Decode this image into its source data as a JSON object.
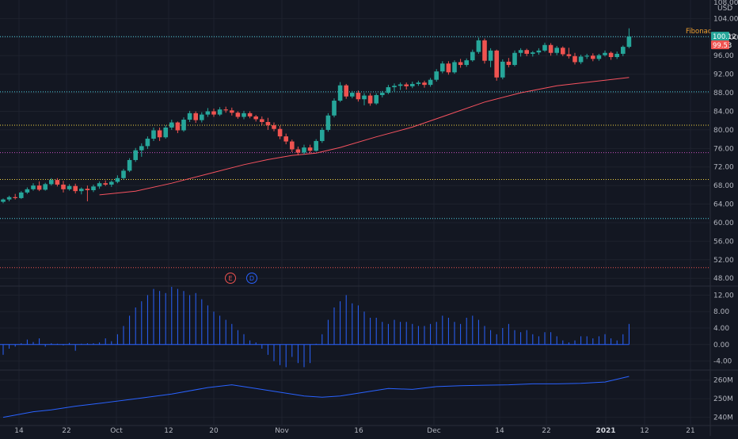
{
  "colors": {
    "background": "#131722",
    "grid": "#1e222d",
    "up": "#26a69a",
    "down": "#ef5350",
    "ma_line": "#f7525f",
    "hist": "#2962ff",
    "indicator_line": "#2962ff",
    "text": "#b2b5be",
    "fib_cyan": "#4dd0e1",
    "fib_yellow": "#f6d743",
    "fib_magenta": "#c850c0",
    "fib_red": "#ef5350",
    "fib_label": "#f0a030",
    "last_price_bg": "#26a69a",
    "prev_close_bg": "#ef5350"
  },
  "price_axis": {
    "currency": "USD",
    "ticks": [
      "108.00",
      "104.00",
      "100.00",
      "96.00",
      "92.00",
      "88.00",
      "84.00",
      "80.00",
      "76.00",
      "72.00",
      "68.00",
      "64.00",
      "60.00",
      "56.00",
      "52.00",
      "48.00"
    ]
  },
  "price_badges": {
    "last": "100.12",
    "previous": "99.53"
  },
  "fib_label": "Fibonac",
  "event_markers": [
    {
      "letter": "E",
      "color": "#ef5350"
    },
    {
      "letter": "D",
      "color": "#2962ff"
    }
  ],
  "osc_axis": {
    "ticks": [
      "12.00",
      "8.00",
      "4.00",
      "0.00",
      "-4.00"
    ]
  },
  "vol_axis": {
    "ticks": [
      "260M",
      "250M",
      "240M"
    ]
  },
  "time_axis": [
    {
      "label": "14",
      "bold": false
    },
    {
      "label": "22",
      "bold": false
    },
    {
      "label": "Oct",
      "bold": false
    },
    {
      "label": "12",
      "bold": false
    },
    {
      "label": "20",
      "bold": false
    },
    {
      "label": "Nov",
      "bold": false
    },
    {
      "label": "16",
      "bold": false
    },
    {
      "label": "Dec",
      "bold": false
    },
    {
      "label": "14",
      "bold": false
    },
    {
      "label": "22",
      "bold": false
    },
    {
      "label": "2021",
      "bold": true
    },
    {
      "label": "12",
      "bold": false
    },
    {
      "label": "21",
      "bold": false
    }
  ],
  "chart_data": [
    {
      "type": "candlestick",
      "title": "",
      "y_unit": "USD",
      "ylim": [
        46.5,
        108
      ],
      "y_ticks": [
        104,
        100,
        96,
        92,
        88,
        84,
        80,
        76,
        72,
        68,
        64,
        60,
        56,
        52,
        48
      ],
      "fibonacci_levels": [
        {
          "value": 100.1,
          "color": "cyan"
        },
        {
          "value": 88.2,
          "color": "cyan"
        },
        {
          "value": 81.0,
          "color": "yellow"
        },
        {
          "value": 75.1,
          "color": "magenta"
        },
        {
          "value": 69.3,
          "color": "yellow"
        },
        {
          "value": 60.9,
          "color": "cyan"
        },
        {
          "value": 50.3,
          "color": "red"
        }
      ],
      "candles": [
        [
          64.5,
          65.2,
          64.2,
          65.0
        ],
        [
          65.0,
          65.8,
          64.6,
          65.5
        ],
        [
          65.5,
          66.2,
          65.0,
          65.3
        ],
        [
          65.3,
          66.8,
          65.1,
          66.5
        ],
        [
          66.5,
          67.6,
          66.2,
          67.2
        ],
        [
          67.2,
          68.5,
          66.9,
          68.0
        ],
        [
          68.0,
          68.9,
          66.8,
          67.1
        ],
        [
          67.1,
          68.6,
          66.9,
          68.3
        ],
        [
          68.3,
          69.6,
          68.0,
          69.2
        ],
        [
          69.2,
          69.6,
          67.8,
          68.2
        ],
        [
          68.2,
          69.0,
          66.5,
          67.2
        ],
        [
          67.2,
          68.3,
          66.9,
          67.9
        ],
        [
          67.9,
          68.4,
          66.3,
          66.8
        ],
        [
          66.8,
          67.6,
          66.1,
          67.3
        ],
        [
          67.3,
          68.0,
          64.6,
          67.0
        ],
        [
          67.0,
          68.2,
          66.6,
          67.8
        ],
        [
          67.8,
          68.9,
          67.3,
          68.5
        ],
        [
          68.5,
          69.1,
          67.9,
          68.2
        ],
        [
          68.2,
          69.1,
          67.7,
          68.8
        ],
        [
          68.8,
          70.2,
          68.5,
          69.6
        ],
        [
          69.6,
          71.6,
          69.3,
          71.2
        ],
        [
          71.2,
          73.9,
          70.9,
          73.5
        ],
        [
          73.5,
          76.1,
          73.1,
          75.6
        ],
        [
          75.6,
          77.1,
          74.2,
          76.5
        ],
        [
          76.5,
          78.6,
          75.9,
          78.1
        ],
        [
          78.1,
          80.5,
          77.6,
          79.9
        ],
        [
          79.9,
          80.5,
          77.6,
          78.4
        ],
        [
          78.4,
          81.0,
          78.1,
          80.5
        ],
        [
          80.5,
          82.2,
          80.0,
          81.6
        ],
        [
          81.6,
          81.8,
          79.3,
          79.9
        ],
        [
          79.9,
          82.7,
          79.6,
          82.2
        ],
        [
          82.2,
          84.1,
          81.7,
          83.6
        ],
        [
          83.6,
          84.0,
          81.5,
          82.1
        ],
        [
          82.1,
          83.8,
          81.6,
          83.3
        ],
        [
          83.3,
          84.7,
          82.8,
          84.0
        ],
        [
          84.0,
          84.6,
          82.8,
          83.3
        ],
        [
          83.3,
          84.9,
          83.0,
          84.4
        ],
        [
          84.4,
          85.0,
          83.7,
          84.2
        ],
        [
          84.2,
          84.8,
          83.1,
          83.7
        ],
        [
          83.7,
          84.0,
          82.4,
          82.8
        ],
        [
          82.8,
          84.1,
          82.3,
          83.6
        ],
        [
          83.6,
          84.0,
          82.5,
          82.9
        ],
        [
          82.9,
          83.2,
          81.8,
          82.3
        ],
        [
          82.3,
          82.9,
          81.1,
          81.7
        ],
        [
          81.7,
          82.6,
          80.0,
          81.0
        ],
        [
          81.0,
          81.6,
          79.7,
          80.2
        ],
        [
          80.2,
          80.9,
          78.0,
          78.6
        ],
        [
          78.6,
          79.2,
          76.9,
          77.5
        ],
        [
          77.5,
          77.9,
          75.2,
          75.8
        ],
        [
          75.8,
          76.4,
          74.5,
          75.1
        ],
        [
          75.1,
          76.8,
          74.7,
          76.2
        ],
        [
          76.2,
          76.8,
          75.0,
          75.5
        ],
        [
          75.5,
          78.0,
          75.3,
          77.6
        ],
        [
          77.6,
          80.5,
          77.2,
          80.0
        ],
        [
          80.0,
          83.6,
          79.6,
          83.1
        ],
        [
          83.1,
          86.8,
          82.7,
          86.3
        ],
        [
          86.3,
          90.3,
          86.0,
          89.6
        ],
        [
          89.6,
          89.9,
          86.7,
          87.2
        ],
        [
          87.2,
          88.4,
          86.8,
          88.0
        ],
        [
          88.0,
          88.5,
          86.1,
          86.6
        ],
        [
          86.6,
          87.9,
          85.3,
          87.4
        ],
        [
          87.4,
          87.9,
          85.2,
          85.7
        ],
        [
          85.7,
          87.9,
          85.4,
          87.5
        ],
        [
          87.5,
          88.4,
          87.0,
          88.0
        ],
        [
          88.0,
          89.7,
          87.7,
          89.2
        ],
        [
          89.2,
          90.0,
          88.3,
          89.5
        ],
        [
          89.5,
          90.2,
          88.6,
          89.8
        ],
        [
          89.8,
          90.2,
          88.7,
          89.4
        ],
        [
          89.4,
          90.4,
          89.0,
          89.9
        ],
        [
          89.9,
          90.6,
          89.5,
          90.2
        ],
        [
          90.2,
          90.6,
          89.1,
          89.7
        ],
        [
          89.7,
          91.2,
          89.3,
          90.8
        ],
        [
          90.8,
          93.1,
          90.4,
          92.6
        ],
        [
          92.6,
          94.8,
          92.2,
          94.3
        ],
        [
          94.3,
          94.8,
          91.9,
          92.4
        ],
        [
          92.4,
          95.0,
          92.1,
          94.6
        ],
        [
          94.6,
          95.3,
          93.4,
          94.0
        ],
        [
          94.0,
          95.4,
          93.6,
          95.0
        ],
        [
          95.0,
          97.3,
          94.7,
          96.8
        ],
        [
          96.8,
          99.9,
          96.4,
          99.3
        ],
        [
          99.3,
          99.7,
          94.3,
          94.9
        ],
        [
          94.9,
          97.6,
          93.5,
          97.1
        ],
        [
          97.1,
          97.3,
          90.6,
          91.3
        ],
        [
          91.3,
          95.2,
          90.9,
          94.7
        ],
        [
          94.7,
          95.5,
          93.5,
          94.0
        ],
        [
          94.0,
          97.1,
          93.7,
          96.6
        ],
        [
          96.6,
          97.6,
          95.8,
          97.2
        ],
        [
          97.2,
          97.5,
          95.9,
          96.4
        ],
        [
          96.4,
          97.0,
          95.8,
          96.7
        ],
        [
          96.7,
          97.6,
          96.2,
          97.1
        ],
        [
          97.1,
          98.8,
          96.8,
          98.3
        ],
        [
          98.3,
          98.7,
          96.0,
          96.6
        ],
        [
          96.6,
          98.1,
          96.1,
          97.7
        ],
        [
          97.7,
          98.0,
          95.9,
          96.3
        ],
        [
          96.3,
          97.7,
          95.4,
          95.9
        ],
        [
          95.9,
          96.6,
          94.1,
          94.6
        ],
        [
          94.6,
          96.2,
          94.2,
          95.8
        ],
        [
          95.8,
          96.4,
          95.3,
          96.0
        ],
        [
          96.0,
          96.5,
          94.8,
          95.3
        ],
        [
          95.3,
          96.4,
          94.9,
          96.1
        ],
        [
          96.1,
          97.1,
          95.8,
          96.6
        ],
        [
          96.6,
          96.9,
          95.1,
          95.7
        ],
        [
          95.7,
          96.9,
          95.3,
          96.4
        ],
        [
          96.4,
          98.2,
          95.9,
          97.9
        ],
        [
          97.9,
          101.9,
          97.6,
          100.12
        ]
      ],
      "moving_average": [
        [
          16,
          66.0
        ],
        [
          22,
          66.8
        ],
        [
          28,
          68.5
        ],
        [
          34,
          70.5
        ],
        [
          40,
          72.5
        ],
        [
          44,
          73.6
        ],
        [
          48,
          74.5
        ],
        [
          52,
          75.0
        ],
        [
          56,
          76.2
        ],
        [
          62,
          78.5
        ],
        [
          68,
          80.6
        ],
        [
          74,
          83.3
        ],
        [
          80,
          86.0
        ],
        [
          86,
          88.0
        ],
        [
          92,
          89.5
        ],
        [
          98,
          90.4
        ],
        [
          104,
          91.3
        ]
      ]
    },
    {
      "type": "bar",
      "title": "",
      "ylim": [
        -6,
        14
      ],
      "y_ticks": [
        12,
        8,
        4,
        0,
        -4
      ],
      "values": [
        -2.5,
        -1.0,
        -0.5,
        0.3,
        1.2,
        0.6,
        1.5,
        -0.5,
        0.3,
        0.2,
        -0.2,
        0.4,
        -1.5,
        0.2,
        0.3,
        0.3,
        0.5,
        1.5,
        0.8,
        2.5,
        4.5,
        7.0,
        9.0,
        10.5,
        12.0,
        13.5,
        13.0,
        12.5,
        14.0,
        13.5,
        13.0,
        12.0,
        12.5,
        11.0,
        9.5,
        8.0,
        7.0,
        6.0,
        5.0,
        3.5,
        2.5,
        1.0,
        0.5,
        -1.0,
        -2.5,
        -4.0,
        -5.0,
        -5.5,
        -3.0,
        -4.5,
        -5.5,
        -4.5,
        0.2,
        2.5,
        6.0,
        9.0,
        10.5,
        12.0,
        10.0,
        9.5,
        8.0,
        6.5,
        6.5,
        5.5,
        5.0,
        6.0,
        5.5,
        5.5,
        5.0,
        4.5,
        4.5,
        5.0,
        5.5,
        7.0,
        6.5,
        5.5,
        5.0,
        6.5,
        7.0,
        6.0,
        4.5,
        3.5,
        2.5,
        4.0,
        5.0,
        3.5,
        3.0,
        3.5,
        2.5,
        2.0,
        3.0,
        3.0,
        2.0,
        1.0,
        0.5,
        1.0,
        2.0,
        2.0,
        1.5,
        2.0,
        2.5,
        1.5,
        1.0,
        2.5,
        5.0
      ]
    },
    {
      "type": "line",
      "title": "",
      "ylim": [
        236,
        265
      ],
      "y_ticks": [
        260,
        250,
        240
      ],
      "y_unit": "M",
      "points": [
        [
          0,
          240.0
        ],
        [
          5,
          243.0
        ],
        [
          8,
          244.0
        ],
        [
          12,
          246.0
        ],
        [
          16,
          247.5
        ],
        [
          22,
          250.0
        ],
        [
          28,
          252.5
        ],
        [
          34,
          256.0
        ],
        [
          38,
          257.5
        ],
        [
          42,
          255.5
        ],
        [
          46,
          253.5
        ],
        [
          50,
          251.5
        ],
        [
          53,
          250.8
        ],
        [
          56,
          251.5
        ],
        [
          60,
          253.5
        ],
        [
          64,
          255.5
        ],
        [
          68,
          255.0
        ],
        [
          72,
          256.5
        ],
        [
          76,
          257.0
        ],
        [
          80,
          257.3
        ],
        [
          84,
          257.5
        ],
        [
          88,
          258.0
        ],
        [
          92,
          258.0
        ],
        [
          96,
          258.3
        ],
        [
          100,
          259.0
        ],
        [
          104,
          262.0
        ]
      ]
    }
  ]
}
